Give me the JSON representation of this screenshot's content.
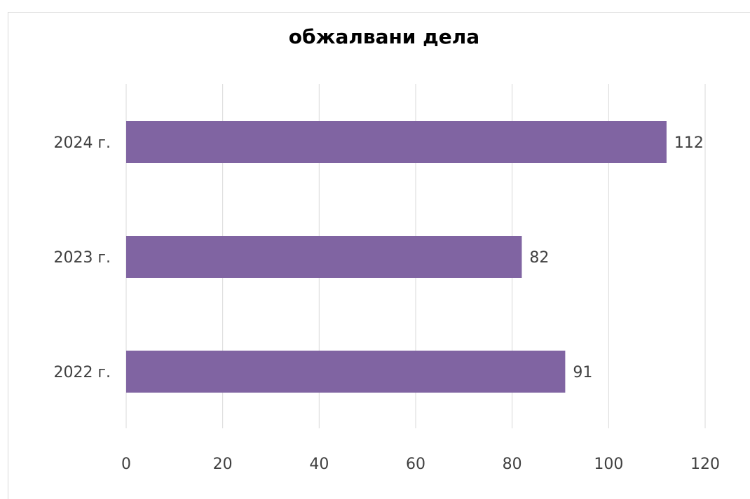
{
  "chart_data": {
    "type": "bar",
    "orientation": "horizontal",
    "title": "обжалвани дела",
    "categories": [
      "2024 г.",
      "2023 г.",
      "2022 г."
    ],
    "values": [
      112,
      82,
      91
    ],
    "data_labels": [
      "112",
      "82",
      "91"
    ],
    "xlabel": "",
    "ylabel": "",
    "xlim": [
      0,
      120
    ],
    "x_ticks": [
      "0",
      "20",
      "40",
      "60",
      "80",
      "100",
      "120"
    ],
    "grid": true,
    "legend": "none",
    "bar_color": "#8064a2",
    "grid_color": "#d9d9d9"
  }
}
